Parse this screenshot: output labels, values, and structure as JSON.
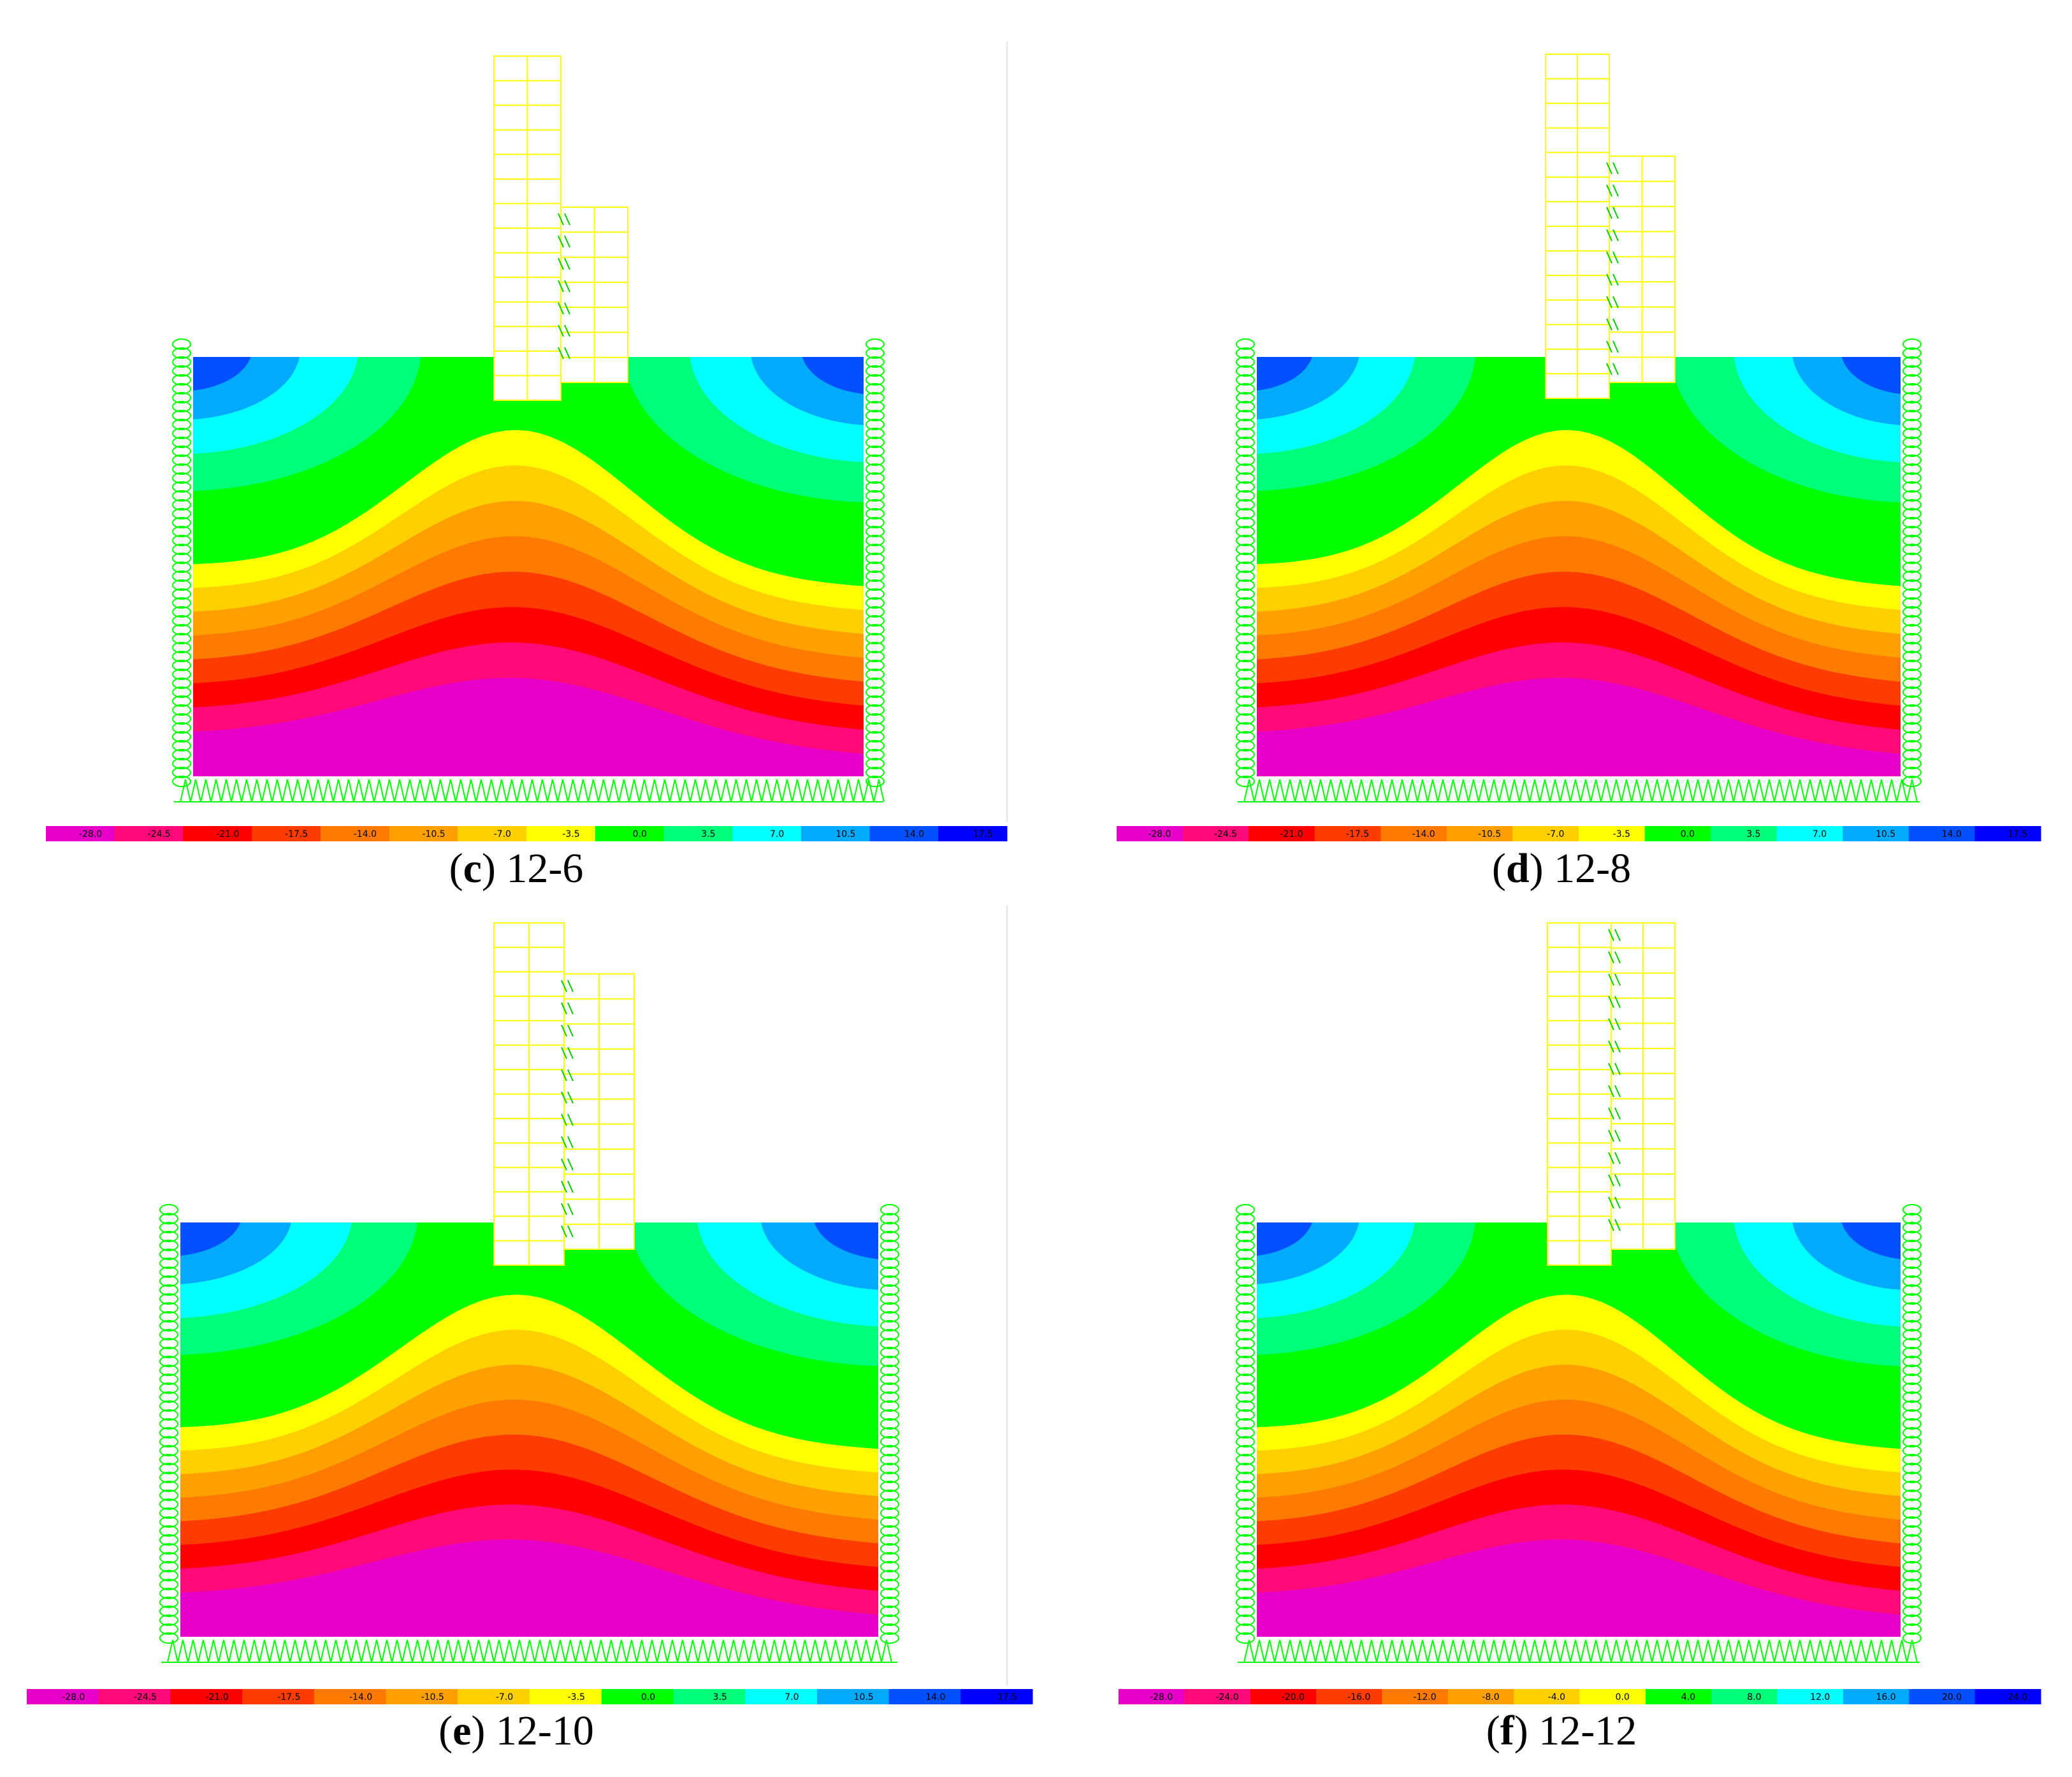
{
  "panels": [
    {
      "id": "c",
      "letter": "c",
      "label": "12-6",
      "colorbar_ticks": [
        "-28.0",
        "-24.5",
        "-21.0",
        "-17.5",
        "-14.0",
        "-10.5",
        "-7.0",
        "-3.5",
        "0.0",
        "3.5",
        "7.0",
        "10.5",
        "14.0",
        "17.5"
      ]
    },
    {
      "id": "d",
      "letter": "d",
      "label": "12-8",
      "colorbar_ticks": [
        "-28.0",
        "-24.5",
        "-21.0",
        "-17.5",
        "-14.0",
        "-10.5",
        "-7.0",
        "-3.5",
        "0.0",
        "3.5",
        "7.0",
        "10.5",
        "14.0",
        "17.5"
      ]
    },
    {
      "id": "e",
      "letter": "e",
      "label": "12-10",
      "colorbar_ticks": [
        "-28.0",
        "-24.5",
        "-21.0",
        "-17.5",
        "-14.0",
        "-10.5",
        "-7.0",
        "-3.5",
        "0.0",
        "3.5",
        "7.0",
        "10.5",
        "14.0",
        "17.5"
      ]
    },
    {
      "id": "f",
      "letter": "f",
      "label": "12-12",
      "colorbar_ticks": [
        "-28.0",
        "-24.0",
        "-20.0",
        "-16.0",
        "-12.0",
        "-8.0",
        "-4.0",
        "0.0",
        "4.0",
        "8.0",
        "12.0",
        "16.0",
        "20.0",
        "24.0"
      ]
    }
  ],
  "colors": {
    "colorbar": [
      "#e600c8",
      "#ff0a78",
      "#ff0000",
      "#ff3c00",
      "#ff7a00",
      "#ffa000",
      "#ffd000",
      "#ffff00",
      "#00ff00",
      "#00ff78",
      "#00ffff",
      "#00aaff",
      "#0050ff",
      "#0000ff"
    ],
    "building_frame": "#ffff00",
    "supports": "#00ff00"
  }
}
